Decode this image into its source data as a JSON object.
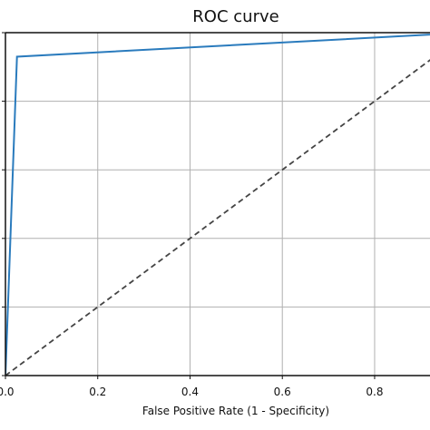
{
  "chart_data": {
    "type": "line",
    "title": "ROC curve",
    "xlabel": "False Positive Rate (1 - Specificity)",
    "ylabel": "",
    "xlim": [
      0,
      0.92
    ],
    "ylim": [
      0,
      1
    ],
    "grid": true,
    "xticks": [
      0,
      0.2,
      0.4,
      0.6,
      0.8
    ],
    "xtick_labels": [
      "0.0",
      "0.2",
      "0.4",
      "0.6",
      "0.8"
    ],
    "yticks": [
      0,
      0.2,
      0.4,
      0.6,
      0.8,
      1.0
    ],
    "series": [
      {
        "color": "#2a7bbd",
        "dash": "solid",
        "x": [
          0.0,
          0.025,
          1.0
        ],
        "y": [
          0.0,
          0.93,
          1.0
        ]
      },
      {
        "color": "#444444",
        "dash": "dashed",
        "x": [
          0.0,
          1.0
        ],
        "y": [
          0.0,
          1.0
        ]
      }
    ]
  }
}
